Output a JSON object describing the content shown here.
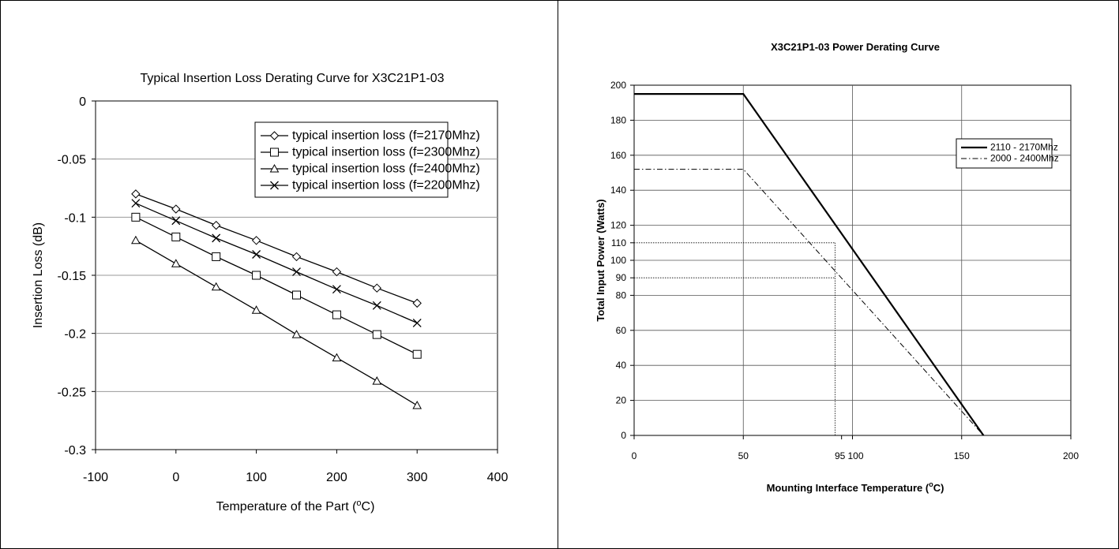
{
  "charts": [
    {
      "type": "line",
      "title": "Typical Insertion Loss Derating Curve for X3C21P1-03",
      "xlabel": "Temperature of the Part (",
      "xlabel_sup": "o",
      "xlabel_end": "C)",
      "ylabel": "Insertion Loss (dB)",
      "xlim": [
        -100,
        400
      ],
      "ylim": [
        -0.3,
        0
      ],
      "xticks": [
        "-100",
        "0",
        "100",
        "200",
        "300",
        "400"
      ],
      "xtick_values": [
        -100,
        0,
        100,
        200,
        300,
        400
      ],
      "yticks": [
        "0",
        "-0.05",
        "-0.1",
        "-0.15",
        "-0.2",
        "-0.25",
        "-0.3"
      ],
      "ytick_values": [
        0,
        -0.05,
        -0.1,
        -0.15,
        -0.2,
        -0.25,
        -0.3
      ],
      "grid": "horizontal",
      "legend_position": "top-right",
      "series": [
        {
          "name": "typical insertion loss (f=2170Mhz)",
          "marker": "diamond",
          "x": [
            -50,
            0,
            50,
            100,
            150,
            200,
            250,
            300
          ],
          "y": [
            -0.08,
            -0.093,
            -0.107,
            -0.12,
            -0.134,
            -0.147,
            -0.161,
            -0.174
          ]
        },
        {
          "name": "typical insertion loss (f=2300Mhz)",
          "marker": "square",
          "x": [
            -50,
            0,
            50,
            100,
            150,
            200,
            250,
            300
          ],
          "y": [
            -0.1,
            -0.117,
            -0.134,
            -0.15,
            -0.167,
            -0.184,
            -0.201,
            -0.218
          ]
        },
        {
          "name": "typical insertion loss (f=2400Mhz)",
          "marker": "triangle",
          "x": [
            -50,
            0,
            50,
            100,
            150,
            200,
            250,
            300
          ],
          "y": [
            -0.12,
            -0.14,
            -0.16,
            -0.18,
            -0.201,
            -0.221,
            -0.241,
            -0.262
          ]
        },
        {
          "name": "typical insertion loss (f=2200Mhz)",
          "marker": "x",
          "x": [
            -50,
            0,
            50,
            100,
            150,
            200,
            250,
            300
          ],
          "y": [
            -0.088,
            -0.103,
            -0.118,
            -0.132,
            -0.147,
            -0.162,
            -0.176,
            -0.191
          ]
        }
      ]
    },
    {
      "type": "line",
      "title": "X3C21P1-03 Power Derating Curve",
      "xlabel": "Mounting Interface Temperature (",
      "xlabel_sup": "o",
      "xlabel_end": "C)",
      "ylabel": "Total Input Power (Watts)",
      "xlim": [
        0,
        200
      ],
      "ylim": [
        0,
        200
      ],
      "xticks": [
        "0",
        "50",
        "95",
        "100",
        "150",
        "200"
      ],
      "xtick_values": [
        0,
        50,
        95,
        100,
        150,
        200
      ],
      "yticks": [
        "200",
        "180",
        "160",
        "140",
        "120",
        "110",
        "100",
        "90",
        "80",
        "60",
        "40",
        "20",
        "0"
      ],
      "ytick_values": [
        200,
        180,
        160,
        140,
        120,
        110,
        100,
        90,
        80,
        60,
        40,
        20,
        0
      ],
      "grid": "both",
      "legend_position": "right",
      "series": [
        {
          "name": "2110 - 2170Mhz",
          "style": "solid",
          "x": [
            0,
            50,
            160
          ],
          "y": [
            195,
            195,
            0
          ]
        },
        {
          "name": "2000 - 2400Mhz",
          "style": "dash-dot",
          "x": [
            0,
            50,
            160
          ],
          "y": [
            152,
            152,
            0
          ]
        }
      ],
      "reference_lines": [
        {
          "x": [
            0,
            92
          ],
          "y": [
            110,
            110
          ]
        },
        {
          "x": [
            0,
            92
          ],
          "y": [
            90,
            90
          ]
        },
        {
          "x": [
            92,
            92
          ],
          "y": [
            0,
            110
          ]
        }
      ]
    }
  ]
}
